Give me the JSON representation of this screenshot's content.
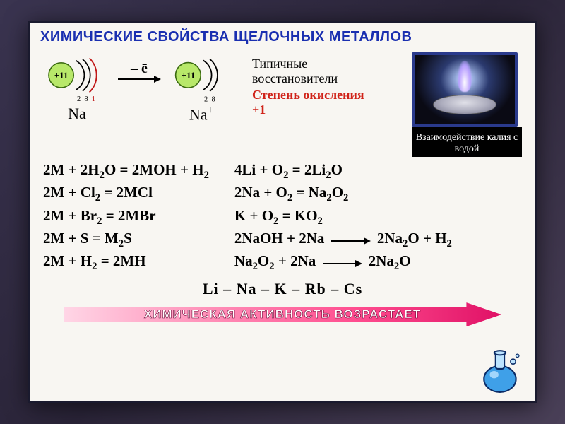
{
  "title": {
    "text": "ХИМИЧЕСКИЕ СВОЙСТВА ЩЕЛОЧНЫХ МЕТАЛЛОВ",
    "color": "#1a2fb0",
    "fontsize": 20
  },
  "background": {
    "slide": "#f8f6f2",
    "outer_gradient": [
      "#3a3450",
      "#2a2438",
      "#4a4058"
    ],
    "border": "#1a1a2e"
  },
  "atoms": {
    "left": {
      "label": "Na",
      "nucleus": "+11",
      "shells": [
        2,
        8,
        1
      ],
      "nucleus_fill": "#b8e86a"
    },
    "right": {
      "label": "Na⁺",
      "nucleus": "+11",
      "shells": [
        2,
        8
      ],
      "nucleus_fill": "#b8e86a"
    },
    "shell_color": "#000000",
    "outer_electron_color": "#c01818",
    "electron_label_color": "#000000",
    "arrow_label": "– ē"
  },
  "descriptor": {
    "line1": "Типичные восстановители",
    "line2": "Степень окисления +1",
    "line2_color": "#d02218"
  },
  "photo": {
    "caption": "Взаимодействие калия с водой",
    "border_color": "#2a3a8c",
    "caption_bg": "#000000",
    "caption_color": "#ffffff"
  },
  "equations": {
    "left": [
      "2M + 2H₂O = 2MOH + H₂",
      "2M + Cl₂ = 2MCl",
      "2M + Br₂ = 2MBr",
      "2M + S = M₂S",
      "2M + H₂ = 2MH"
    ],
    "right": [
      "4Li + O₂ = 2Li₂O",
      "2Na + O₂ = Na₂O₂",
      "K + O₂ = KO₂",
      "2NaOH + 2Na → 2Na₂O + H₂",
      "Na₂O₂ + 2Na → 2Na₂O"
    ],
    "fontsize": 21,
    "color": "#000000",
    "arrow_width": 46
  },
  "series": {
    "text": "Li – Na – K – Rb – Cs",
    "fontsize": 22
  },
  "activity": {
    "text": "ХИМИЧЕСКАЯ АКТИВНОСТЬ ВОЗРАСТАЕТ",
    "gradient": [
      "#ffd6e6",
      "#ff8fb8",
      "#ff4d8f",
      "#e01166"
    ],
    "text_color": "#ffffff",
    "fontsize": 17
  },
  "flask_icon": {
    "body": "#3fa0e8",
    "outline": "#0b2b66",
    "highlight": "#bde4ff"
  }
}
